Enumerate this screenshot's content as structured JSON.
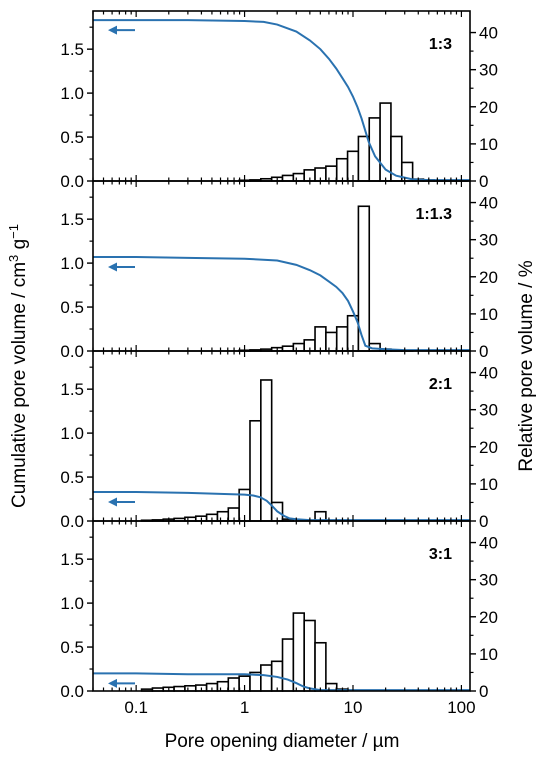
{
  "chart_data": {
    "type": "bar",
    "xlabel": "Pore opening diameter / µm",
    "ylabel_left": "Cumulative pore volume / cm3 g−1",
    "ylabel_right": "Relative pore volume / %",
    "x_scale": "log",
    "xlim": [
      0.04,
      120
    ],
    "x_ticks": [
      0.1,
      1,
      10,
      100
    ],
    "x_tick_labels": [
      "0.1",
      "1",
      "10",
      "100"
    ],
    "ylim_left": [
      0,
      1.9
    ],
    "y_left_ticks": [
      0,
      0.5,
      1.0,
      1.5
    ],
    "y_left_tick_labels": [
      "0.0",
      "0.5",
      "1.0",
      "1.5"
    ],
    "ylim_right": [
      0,
      45
    ],
    "y_right_ticks": [
      0,
      10,
      20,
      30,
      40
    ],
    "y_right_tick_labels": [
      "0",
      "10",
      "20",
      "30",
      "40"
    ],
    "colors": {
      "cumulative": "#2a72b0",
      "bars": "#000000"
    },
    "bin_edges": [
      0.0355,
      0.0447,
      0.0562,
      0.0708,
      0.0891,
      0.1122,
      0.1413,
      0.1778,
      0.2239,
      0.2818,
      0.3548,
      0.4467,
      0.5623,
      0.7079,
      0.8913,
      1.122,
      1.4125,
      1.7783,
      2.2387,
      2.8184,
      3.5481,
      4.4668,
      5.6234,
      7.0795,
      8.9125,
      11.22,
      14.125,
      17.783,
      22.387,
      28.184,
      35.481,
      44.668,
      56.234,
      70.795,
      89.125,
      112.2
    ],
    "panels": [
      {
        "label": "1:3",
        "relative_volume_pct": [
          0,
          0,
          0,
          0,
          0,
          0,
          0,
          0,
          0,
          0,
          0,
          0,
          0,
          0,
          0.2,
          0.3,
          0.6,
          1,
          1.5,
          2,
          3,
          3.5,
          4,
          6,
          8,
          12,
          17,
          21,
          12,
          5,
          0.5,
          0.3,
          0.2,
          0.2,
          0.2
        ],
        "cumulative": {
          "x": [
            0.04,
            0.1,
            0.3,
            1,
            1.5,
            2,
            3,
            4,
            5,
            6,
            7,
            8,
            9,
            10,
            11,
            12,
            13,
            14,
            16,
            20,
            25,
            35,
            50,
            120
          ],
          "y": [
            1.83,
            1.83,
            1.83,
            1.82,
            1.81,
            1.78,
            1.7,
            1.6,
            1.5,
            1.39,
            1.28,
            1.17,
            1.07,
            0.96,
            0.84,
            0.71,
            0.57,
            0.44,
            0.28,
            0.13,
            0.06,
            0.02,
            0.01,
            0.01
          ]
        }
      },
      {
        "label": "1:1.3",
        "relative_volume_pct": [
          0,
          0,
          0,
          0,
          0,
          0,
          0,
          0,
          0,
          0,
          0,
          0,
          0,
          0,
          0.2,
          0.3,
          0.5,
          0.9,
          1.3,
          2,
          3,
          6.5,
          5,
          6.5,
          9.5,
          39,
          2,
          0.5,
          0.2,
          0.1,
          0,
          0,
          0,
          0,
          0
        ],
        "cumulative": {
          "x": [
            0.04,
            0.1,
            0.3,
            1,
            2,
            3,
            4,
            5,
            6,
            7,
            8,
            9,
            10,
            11,
            12,
            13,
            15,
            20,
            30,
            50,
            120
          ],
          "y": [
            1.07,
            1.07,
            1.06,
            1.05,
            1.03,
            0.98,
            0.92,
            0.86,
            0.79,
            0.73,
            0.66,
            0.57,
            0.45,
            0.33,
            0.18,
            0.06,
            0.03,
            0.02,
            0.01,
            0.01,
            0.01
          ]
        }
      },
      {
        "label": "2:1",
        "relative_volume_pct": [
          0,
          0,
          0,
          0,
          0,
          0.2,
          0.3,
          0.5,
          0.7,
          1,
          1.3,
          1.8,
          2.5,
          3.5,
          8.5,
          27,
          38,
          5,
          0.5,
          0,
          0,
          2.5,
          0,
          0,
          0,
          0,
          0,
          0,
          0,
          0,
          0,
          0,
          0,
          0,
          0
        ],
        "cumulative": {
          "x": [
            0.04,
            0.1,
            0.3,
            1,
            1.2,
            1.4,
            1.6,
            1.8,
            2.0,
            2.3,
            2.6,
            3,
            4,
            10,
            120
          ],
          "y": [
            0.33,
            0.33,
            0.32,
            0.3,
            0.29,
            0.27,
            0.23,
            0.17,
            0.11,
            0.06,
            0.03,
            0.02,
            0.01,
            0.01,
            0.01
          ]
        }
      },
      {
        "label": "3:1",
        "relative_volume_pct": [
          0,
          0,
          0,
          0,
          0,
          0.5,
          0.8,
          1,
          1.2,
          1.4,
          1.6,
          2,
          2.5,
          3.5,
          4,
          5,
          7,
          8,
          14,
          21,
          19,
          13,
          2,
          0.5,
          0,
          0,
          0,
          0,
          0,
          0,
          0,
          0,
          0,
          0,
          0
        ],
        "cumulative": {
          "x": [
            0.04,
            0.1,
            0.3,
            1,
            1.5,
            2,
            2.5,
            3,
            3.5,
            4,
            5,
            7,
            10,
            120
          ],
          "y": [
            0.2,
            0.2,
            0.19,
            0.19,
            0.18,
            0.16,
            0.13,
            0.09,
            0.05,
            0.03,
            0.01,
            0.01,
            0.01,
            0.01
          ]
        }
      }
    ]
  }
}
